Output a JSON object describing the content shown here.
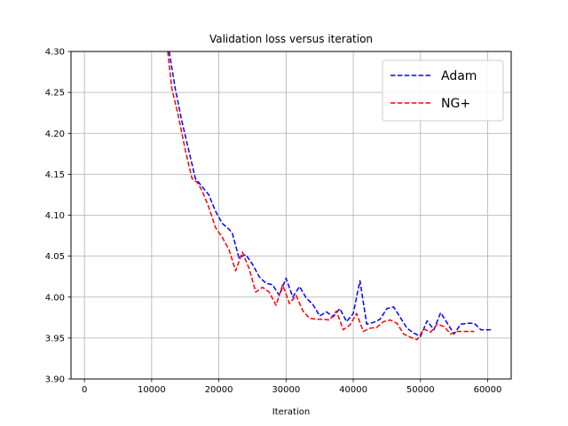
{
  "chart_data": {
    "type": "line",
    "title": "Validation loss versus iteration",
    "xlabel": "Iteration",
    "ylabel": "",
    "xlim": [
      -2000,
      63500
    ],
    "ylim": [
      3.9,
      4.3
    ],
    "xticks": [
      0,
      10000,
      20000,
      30000,
      40000,
      50000,
      60000
    ],
    "xtick_labels": [
      "0",
      "10000",
      "20000",
      "30000",
      "40000",
      "50000",
      "60000"
    ],
    "yticks": [
      3.9,
      3.95,
      4.0,
      4.05,
      4.1,
      4.15,
      4.2,
      4.25,
      4.3
    ],
    "ytick_labels": [
      "3.90",
      "3.95",
      "4.00",
      "4.05",
      "4.10",
      "4.15",
      "4.20",
      "4.25",
      "4.30"
    ],
    "grid": true,
    "legend_position": "top-right",
    "series": [
      {
        "name": "Adam",
        "color": "#0000ff",
        "linestyle": "dashed",
        "x": [
          12600,
          13500,
          14500,
          15500,
          16500,
          17500,
          18500,
          19500,
          20500,
          21500,
          22000,
          23000,
          24000,
          25000,
          26000,
          27000,
          28000,
          29000,
          30000,
          31000,
          32000,
          33000,
          34000,
          35000,
          36000,
          37000,
          38000,
          39000,
          40000,
          41000,
          42000,
          43000,
          44000,
          45000,
          46000,
          47000,
          48000,
          49000,
          50000,
          51000,
          52000,
          53000,
          54000,
          55000,
          56000,
          57000,
          58000,
          59000,
          60000,
          60500
        ],
        "y": [
          4.3,
          4.255,
          4.215,
          4.18,
          4.145,
          4.135,
          4.125,
          4.105,
          4.09,
          4.083,
          4.078,
          4.048,
          4.052,
          4.04,
          4.025,
          4.017,
          4.015,
          4.002,
          4.023,
          4.0,
          4.013,
          3.999,
          3.991,
          3.977,
          3.982,
          3.976,
          3.986,
          3.97,
          3.98,
          4.02,
          3.967,
          3.969,
          3.973,
          3.986,
          3.988,
          3.975,
          3.962,
          3.956,
          3.952,
          3.971,
          3.96,
          3.981,
          3.968,
          3.955,
          3.967,
          3.968,
          3.968,
          3.96,
          3.96,
          3.96
        ]
      },
      {
        "name": "NG+",
        "color": "#ff0000",
        "linestyle": "dashed",
        "x": [
          12400,
          13000,
          14000,
          15000,
          16000,
          16800,
          17500,
          18500,
          19500,
          20500,
          21500,
          22500,
          23500,
          24500,
          25500,
          26500,
          27500,
          28500,
          29500,
          30500,
          31500,
          32500,
          33500,
          34500,
          35500,
          36500,
          37500,
          38500,
          39500,
          40500,
          41500,
          42500,
          43500,
          44500,
          45500,
          46500,
          47500,
          48500,
          49500,
          50500,
          51500,
          52500,
          53500,
          54500,
          55500,
          56500,
          57500,
          58000
        ],
        "y": [
          4.3,
          4.255,
          4.22,
          4.18,
          4.145,
          4.14,
          4.13,
          4.11,
          4.085,
          4.073,
          4.058,
          4.032,
          4.055,
          4.035,
          4.006,
          4.012,
          4.006,
          3.99,
          4.015,
          3.992,
          4.002,
          3.983,
          3.974,
          3.973,
          3.973,
          3.972,
          3.983,
          3.96,
          3.966,
          3.98,
          3.958,
          3.962,
          3.963,
          3.97,
          3.972,
          3.968,
          3.955,
          3.951,
          3.948,
          3.961,
          3.957,
          3.967,
          3.964,
          3.955,
          3.958,
          3.958,
          3.958,
          3.958
        ]
      }
    ]
  }
}
